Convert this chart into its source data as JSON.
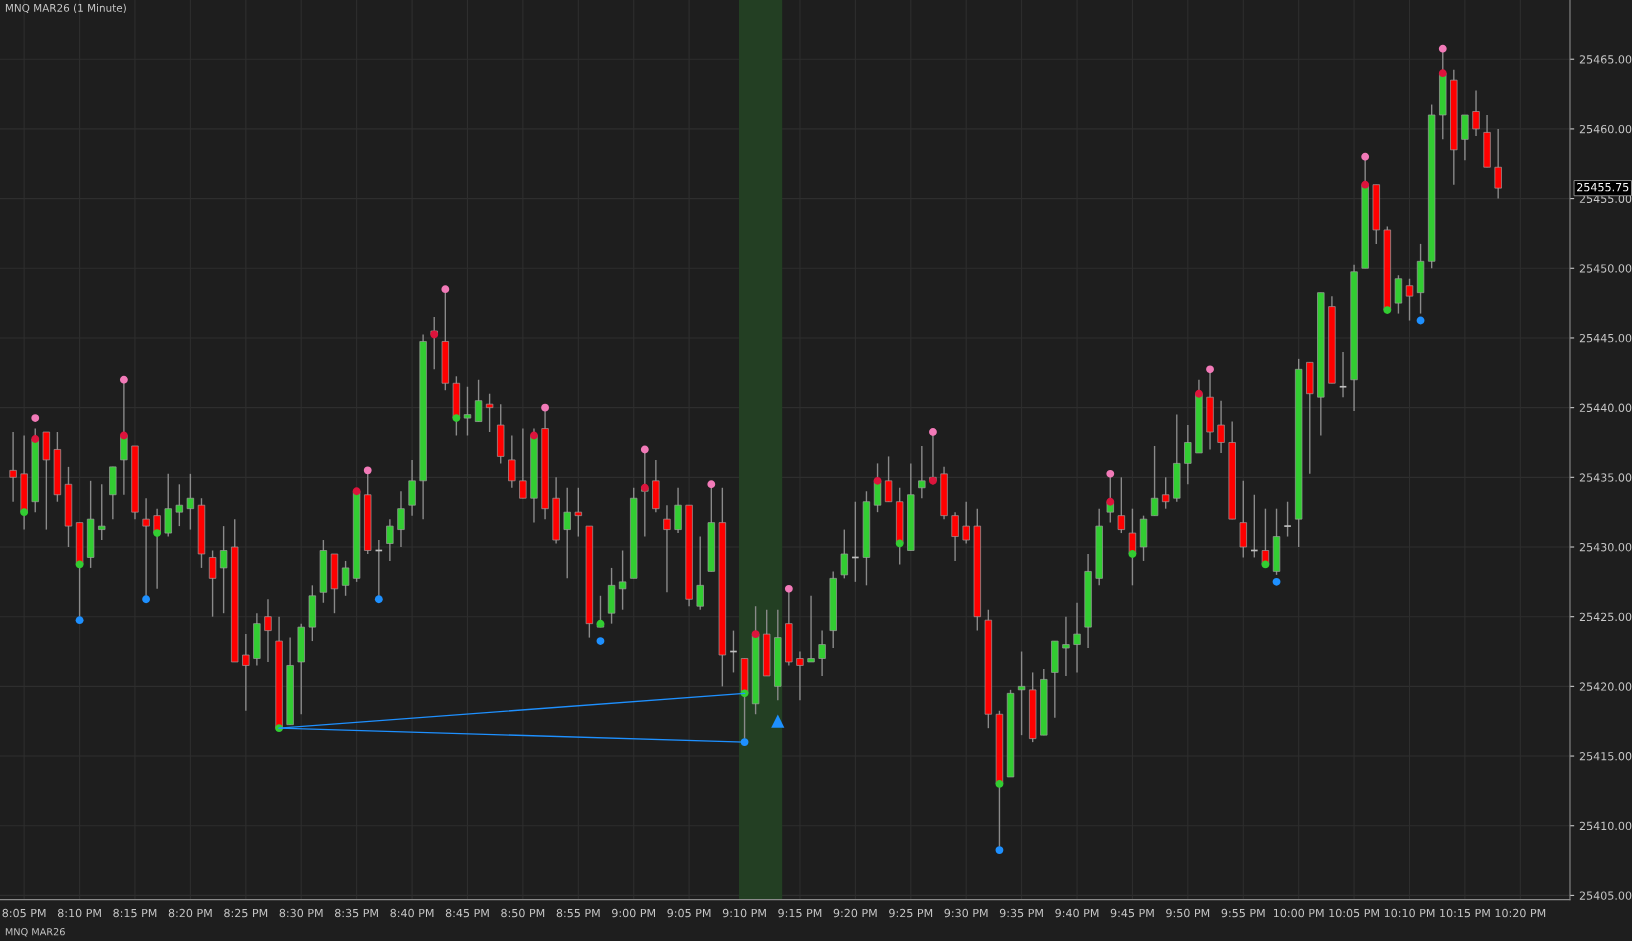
{
  "chart_data": {
    "type": "candlestick",
    "title": "MNQ MAR26 (1 Minute)",
    "annotations": [
      "MNQ MAR26",
      "25455.75"
    ],
    "x": [
      20.0667,
      20.0833,
      20.1,
      20.1167,
      20.1333,
      20.15,
      20.1667,
      20.1833,
      20.2,
      20.2167,
      20.2333,
      20.25,
      20.2667,
      20.2833,
      20.3,
      20.3167,
      20.3333,
      20.35,
      20.3667,
      20.3833,
      20.4,
      20.4167,
      20.4333,
      20.45,
      20.4667,
      20.4833,
      20.5,
      20.5167,
      20.5333,
      20.55,
      20.5667,
      20.5833,
      20.6,
      20.6167,
      20.6333,
      20.65,
      20.6667,
      20.6833,
      20.7,
      20.7167,
      20.7333,
      20.75,
      20.7667,
      20.7833,
      20.8,
      20.8167,
      20.8333,
      20.85,
      20.8667,
      20.8833,
      20.9,
      20.9167,
      20.9333,
      20.95,
      20.9667,
      20.9833,
      21,
      21.0167,
      21.0333,
      21.05,
      21.0667,
      21.0833,
      21.1,
      21.1167,
      21.1333,
      21.15,
      21.1667,
      21.1833,
      21.2,
      21.2167,
      21.2333,
      21.25,
      21.2667,
      21.2833,
      21.3,
      21.3167,
      21.3333,
      21.35,
      21.3667,
      21.3833,
      21.4,
      21.4167,
      21.4333,
      21.45,
      21.4667,
      21.4833,
      21.5,
      21.5167,
      21.5333,
      21.55,
      21.5667,
      21.5833,
      21.6,
      21.6167,
      21.6333,
      21.65,
      21.6667,
      21.6833,
      21.7,
      21.7167,
      21.7333,
      21.75,
      21.7667,
      21.7833,
      21.8,
      21.8167,
      21.8333,
      21.85,
      21.8667,
      21.8833,
      21.9,
      21.9167,
      21.9333,
      21.95,
      21.9667,
      21.9833,
      22,
      22.0167,
      22.0333,
      22.05,
      22.0667,
      22.0833,
      22.1,
      22.1167,
      22.1333,
      22.15,
      22.1667,
      22.1833,
      22.2,
      22.2167,
      22.2333,
      22.25,
      22.2667,
      22.2833,
      22.3
    ],
    "ohlc": [
      [
        25435.5,
        25438.25,
        25433.25,
        25435
      ],
      [
        25435.25,
        25438,
        25431.25,
        25432.5
      ],
      [
        25433.25,
        25438.5,
        25432.5,
        25437.75
      ],
      [
        25438.25,
        25438.25,
        25431.25,
        25436.25
      ],
      [
        25437,
        25438.25,
        25433.25,
        25433.75
      ],
      [
        25434.5,
        25435.75,
        25430,
        25431.5
      ],
      [
        25431.75,
        25431.75,
        25425,
        25428.75
      ],
      [
        25429.25,
        25434.75,
        25428.5,
        25432
      ],
      [
        25431.25,
        25434.5,
        25430.5,
        25431.5
      ],
      [
        25433.75,
        25435.75,
        25432,
        25435.75
      ],
      [
        25436.25,
        25441.75,
        25433.75,
        25438
      ],
      [
        25437.25,
        25437.25,
        25432,
        25432.5
      ],
      [
        25432,
        25433.5,
        25426.5,
        25431.5
      ],
      [
        25432.25,
        25432.75,
        25427,
        25431
      ],
      [
        25431,
        25435.25,
        25430.75,
        25432.75
      ],
      [
        25432.5,
        25434.5,
        25431.5,
        25433
      ],
      [
        25432.75,
        25435.25,
        25431.25,
        25433.5
      ],
      [
        25433,
        25433.5,
        25428.5,
        25429.5
      ],
      [
        25429.25,
        25429.75,
        25425,
        25427.75
      ],
      [
        25428.5,
        25431.5,
        25425.25,
        25429.75
      ],
      [
        25430,
        25432,
        25421.75,
        25421.75
      ],
      [
        25422.25,
        25423.75,
        25418.25,
        25421.5
      ],
      [
        25422,
        25425.25,
        25421.5,
        25424.5
      ],
      [
        25425,
        25426.25,
        25421.75,
        25424
      ],
      [
        25423.25,
        25425,
        25417,
        25417
      ],
      [
        25417.25,
        25423.5,
        25417.25,
        25421.5
      ],
      [
        25421.75,
        25424.5,
        25418,
        25424.25
      ],
      [
        25424.25,
        25427.25,
        25423.25,
        25426.5
      ],
      [
        25426.75,
        25430.5,
        25426,
        25429.75
      ],
      [
        25429.5,
        25429.5,
        25425.25,
        25427
      ],
      [
        25427.25,
        25429,
        25426.5,
        25428.5
      ],
      [
        25427.75,
        25434,
        25427.5,
        25434
      ],
      [
        25433.75,
        25435.25,
        25429.5,
        25429.75
      ],
      [
        25429.75,
        25430.5,
        25426.5,
        25429.75
      ],
      [
        25430.25,
        25432,
        25429,
        25431.5
      ],
      [
        25431.25,
        25434,
        25430,
        25432.75
      ],
      [
        25433,
        25436.25,
        25432.25,
        25434.75
      ],
      [
        25434.75,
        25445.25,
        25432,
        25444.75
      ],
      [
        25445.5,
        25446.5,
        25442.75,
        25445.25
      ],
      [
        25444.75,
        25448.25,
        25441.25,
        25441.75
      ],
      [
        25441.75,
        25442.25,
        25438,
        25439.25
      ],
      [
        25439.25,
        25441.5,
        25438,
        25439.5
      ],
      [
        25439,
        25442,
        25439,
        25440.5
      ],
      [
        25440.25,
        25441,
        25438.25,
        25440
      ],
      [
        25438.75,
        25440.25,
        25436,
        25436.5
      ],
      [
        25436.25,
        25438,
        25434.25,
        25434.75
      ],
      [
        25434.75,
        25438.5,
        25433.5,
        25433.5
      ],
      [
        25433.5,
        25438.5,
        25431.75,
        25438
      ],
      [
        25438.5,
        25439.75,
        25432,
        25432.75
      ],
      [
        25433.5,
        25435,
        25430.25,
        25430.5
      ],
      [
        25431.25,
        25434.25,
        25427.75,
        25432.5
      ],
      [
        25432.5,
        25434.25,
        25430.75,
        25432.25
      ],
      [
        25431.5,
        25431.5,
        25423.5,
        25424.5
      ],
      [
        25424.25,
        25426.5,
        25424.25,
        25424.5
      ],
      [
        25425.25,
        25428.5,
        25424.5,
        25427.25
      ],
      [
        25427,
        25429.75,
        25425.5,
        25427.5
      ],
      [
        25427.75,
        25434.25,
        25427.75,
        25433.5
      ],
      [
        25434,
        25436.75,
        25430.75,
        25434.25
      ],
      [
        25434.75,
        25436.25,
        25432.5,
        25432.75
      ],
      [
        25432,
        25433,
        25426.75,
        25431.25
      ],
      [
        25431.25,
        25434.25,
        25431,
        25433
      ],
      [
        25433,
        25433,
        25425.75,
        25426.25
      ],
      [
        25425.75,
        25430.75,
        25425.5,
        25427.25
      ],
      [
        25428.25,
        25434.25,
        25428.25,
        25431.75
      ],
      [
        25431.75,
        25434.25,
        25420,
        25422.25
      ],
      [
        25422.5,
        25424,
        25421,
        25422.5
      ],
      [
        25422,
        25422,
        25416.25,
        25419.5
      ],
      [
        25418.75,
        25425.75,
        25418,
        25423.75
      ],
      [
        25423.75,
        25425.5,
        25420.75,
        25420.75
      ],
      [
        25420,
        25425.5,
        25419,
        25423.5
      ],
      [
        25424.5,
        25426.75,
        25421.5,
        25421.75
      ],
      [
        25422,
        25422.5,
        25419,
        25421.5
      ],
      [
        25421.75,
        25426.5,
        25421.75,
        25422
      ],
      [
        25422,
        25424,
        25420.75,
        25423
      ],
      [
        25424,
        25428.25,
        25422.75,
        25427.75
      ],
      [
        25428,
        25431.25,
        25427.75,
        25429.5
      ],
      [
        25429.25,
        25433.25,
        25427.5,
        25429.25
      ],
      [
        25429.25,
        25434,
        25427.25,
        25433.25
      ],
      [
        25433,
        25436,
        25432.5,
        25434.75
      ],
      [
        25434.75,
        25436.5,
        25433.25,
        25433.25
      ],
      [
        25433.25,
        25434.25,
        25428.75,
        25430.25
      ],
      [
        25429.75,
        25436,
        25429.75,
        25433.75
      ],
      [
        25434.25,
        25437.25,
        25433.5,
        25434.75
      ],
      [
        25435,
        25438,
        25434.5,
        25434.75
      ],
      [
        25435.25,
        25435.75,
        25432,
        25432.25
      ],
      [
        25432.25,
        25432.5,
        25429,
        25430.75
      ],
      [
        25431.5,
        25433.25,
        25430.25,
        25430.5
      ],
      [
        25431.5,
        25432.75,
        25424,
        25425
      ],
      [
        25424.75,
        25425.5,
        25417,
        25418
      ],
      [
        25418,
        25418.25,
        25408.5,
        25413
      ],
      [
        25413.5,
        25419.75,
        25413.5,
        25419.5
      ],
      [
        25419.75,
        25422.5,
        25416.5,
        25420
      ],
      [
        25419.75,
        25421,
        25416,
        25416.25
      ],
      [
        25416.5,
        25421.25,
        25416.5,
        25420.5
      ],
      [
        25421,
        25423.25,
        25417.75,
        25423.25
      ],
      [
        25422.75,
        25425,
        25420.75,
        25423
      ],
      [
        25423,
        25426,
        25421,
        25423.75
      ],
      [
        25424.25,
        25429.5,
        25422.75,
        25428.25
      ],
      [
        25427.75,
        25432.75,
        25427.25,
        25431.5
      ],
      [
        25432.5,
        25435,
        25431.75,
        25433.25
      ],
      [
        25432.25,
        25435,
        25431,
        25431.25
      ],
      [
        25431,
        25432.75,
        25427.25,
        25429.5
      ],
      [
        25430,
        25432.25,
        25429,
        25432
      ],
      [
        25432.25,
        25437.25,
        25432.25,
        25433.5
      ],
      [
        25433.75,
        25435,
        25432.75,
        25433.25
      ],
      [
        25433.5,
        25439.5,
        25433.25,
        25436
      ],
      [
        25436,
        25438.75,
        25434.5,
        25437.5
      ],
      [
        25436.75,
        25442,
        25436.75,
        25441
      ],
      [
        25440.75,
        25442.5,
        25437,
        25438.25
      ],
      [
        25438.75,
        25440.5,
        25436.75,
        25437.5
      ],
      [
        25437.5,
        25439,
        25432,
        25432
      ],
      [
        25431.75,
        25434.75,
        25429.25,
        25430
      ],
      [
        25429.75,
        25433.75,
        25429.25,
        25429.75
      ],
      [
        25429.75,
        25432.75,
        25428.75,
        25428.75
      ],
      [
        25428.25,
        25432.75,
        25428,
        25430.75
      ],
      [
        25431.5,
        25433.25,
        25430.75,
        25431.5
      ],
      [
        25432,
        25443.5,
        25430,
        25442.75
      ],
      [
        25443.25,
        25443.25,
        25435.25,
        25441
      ],
      [
        25440.75,
        25448.25,
        25438,
        25448.25
      ],
      [
        25447.25,
        25448,
        25441.75,
        25441.75
      ],
      [
        25441.5,
        25444,
        25440.75,
        25441.5
      ],
      [
        25442,
        25450.25,
        25439.75,
        25449.75
      ],
      [
        25450,
        25457.75,
        25450,
        25456
      ],
      [
        25456,
        25456,
        25451.75,
        25452.75
      ],
      [
        25452.75,
        25453,
        25447,
        25447
      ],
      [
        25447.5,
        25449.5,
        25446.75,
        25449.25
      ],
      [
        25448.75,
        25449.25,
        25446.25,
        25448
      ],
      [
        25448.25,
        25451.75,
        25446.75,
        25450.5
      ],
      [
        25450.5,
        25461.75,
        25450,
        25461
      ],
      [
        25461,
        25465.5,
        25459.25,
        25464
      ],
      [
        25463.5,
        25464.25,
        25456,
        25458.5
      ],
      [
        25459.25,
        25461,
        25457.75,
        25461
      ],
      [
        25461.25,
        25462.75,
        25459.5,
        25460
      ],
      [
        25459.75,
        25461,
        25457.25,
        25457.25
      ],
      [
        25457.25,
        25460,
        25455,
        25455.75
      ]
    ],
    "colors": [
      "#ff0000",
      "#ff0000",
      "#32cd32",
      "#ff0000",
      "#ff0000",
      "#ff0000",
      "#ff0000",
      "#32cd32",
      "#32cd32",
      "#32cd32",
      "#32cd32",
      "#ff0000",
      "#ff0000",
      "#ff0000",
      "#32cd32",
      "#32cd32",
      "#32cd32",
      "#ff0000",
      "#ff0000",
      "#32cd32",
      "#ff0000",
      "#ff0000",
      "#32cd32",
      "#ff0000",
      "#ff0000",
      "#32cd32",
      "#32cd32",
      "#32cd32",
      "#32cd32",
      "#ff0000",
      "#32cd32",
      "#32cd32",
      "#ff0000",
      "#c0c0c0",
      "#32cd32",
      "#32cd32",
      "#32cd32",
      "#32cd32",
      "#ff0000",
      "#ff0000",
      "#ff0000",
      "#32cd32",
      "#32cd32",
      "#ff0000",
      "#ff0000",
      "#ff0000",
      "#ff0000",
      "#32cd32",
      "#ff0000",
      "#ff0000",
      "#32cd32",
      "#ff0000",
      "#ff0000",
      "#32cd32",
      "#32cd32",
      "#32cd32",
      "#32cd32",
      "#32cd32",
      "#ff0000",
      "#ff0000",
      "#32cd32",
      "#ff0000",
      "#32cd32",
      "#32cd32",
      "#ff0000",
      "#c0c0c0",
      "#ff0000",
      "#32cd32",
      "#ff0000",
      "#32cd32",
      "#ff0000",
      "#ff0000",
      "#32cd32",
      "#32cd32",
      "#32cd32",
      "#32cd32",
      "#c0c0c0",
      "#32cd32",
      "#32cd32",
      "#ff0000",
      "#ff0000",
      "#32cd32",
      "#32cd32",
      "#ff0000",
      "#ff0000",
      "#ff0000",
      "#ff0000",
      "#ff0000",
      "#ff0000",
      "#ff0000",
      "#32cd32",
      "#32cd32",
      "#ff0000",
      "#32cd32",
      "#32cd32",
      "#32cd32",
      "#32cd32",
      "#32cd32",
      "#32cd32",
      "#32cd32",
      "#ff0000",
      "#ff0000",
      "#32cd32",
      "#32cd32",
      "#ff0000",
      "#32cd32",
      "#32cd32",
      "#32cd32",
      "#ff0000",
      "#ff0000",
      "#ff0000",
      "#ff0000",
      "#c0c0c0",
      "#ff0000",
      "#32cd32",
      "#c0c0c0",
      "#32cd32",
      "#ff0000",
      "#32cd32",
      "#ff0000",
      "#c0c0c0",
      "#32cd32",
      "#32cd32",
      "#ff0000",
      "#ff0000",
      "#32cd32",
      "#ff0000",
      "#32cd32",
      "#32cd32",
      "#32cd32",
      "#ff0000",
      "#32cd32",
      "#ff0000",
      "#ff0000",
      "#ff0000"
    ],
    "series": [
      {
        "type": "scatter",
        "marker": "circle",
        "color": "#f27ab8",
        "x": [
          20.1,
          20.2333,
          20.6,
          20.7167,
          20.8667,
          21.0167,
          21.1167,
          21.2333,
          21.45,
          21.7167,
          21.8667,
          22.1,
          22.2167
        ],
        "values": [
          25439.25,
          25442,
          25435.5,
          25448.5,
          25440,
          25437,
          25434.5,
          25427,
          25438.25,
          25435.25,
          25442.75,
          25458,
          25465.75
        ]
      },
      {
        "type": "scatter",
        "marker": "circle",
        "color": "#dc143c",
        "x": [
          20.1,
          20.2333,
          20.5833,
          20.7,
          20.85,
          21.0167,
          21.1833,
          21.3667,
          21.45,
          21.7167,
          21.85,
          22.1,
          22.2167
        ],
        "values": [
          25437.75,
          25438,
          25434,
          25445.25,
          25438,
          25434.25,
          25423.75,
          25434.75,
          25434.75,
          25433.25,
          25441,
          25456,
          25464
        ]
      },
      {
        "type": "scatter",
        "marker": "circle",
        "color": "#32cd32",
        "x": [
          20.0833,
          20.1667,
          20.2833,
          20.4667,
          20.7333,
          20.95,
          21.1667,
          21.4,
          21.55,
          21.75,
          21.95,
          22.1333
        ],
        "values": [
          25432.5,
          25428.75,
          25431,
          25417,
          25439.25,
          25424.5,
          25419.5,
          25430.25,
          25413,
          25429.5,
          25428.75,
          25447
        ]
      },
      {
        "type": "scatter",
        "marker": "circle",
        "color": "#1e90ff",
        "x": [
          20.1667,
          20.2667,
          20.6167,
          20.95,
          21.1667,
          21.55,
          21.9667,
          22.1833
        ],
        "values": [
          25424.75,
          25426.25,
          25426.25,
          25423.25,
          25416,
          25408.25,
          25427.5,
          25446.25
        ]
      },
      {
        "type": "line",
        "color": "#1e90ff",
        "x": [
          20.4667,
          21.1667
        ],
        "values": [
          25417,
          25419.5
        ]
      },
      {
        "type": "line",
        "color": "#1e90ff",
        "x": [
          20.4667,
          21.1667
        ],
        "values": [
          25417,
          25416
        ]
      },
      {
        "type": "scatter",
        "marker": "triangle",
        "color": "#1e90ff",
        "x": [
          21.2167
        ],
        "values": [
          25417.5
        ]
      }
    ],
    "bands": [
      {
        "axis": "x",
        "from": 21.1583,
        "to": 21.2233,
        "color": "#233f23"
      }
    ],
    "xlim": [
      20.047,
      22.408
    ],
    "ylim": [
      25404.7,
      25469.25
    ],
    "xticks": [
      {
        "value": 20.0833,
        "label": "8:05 PM"
      },
      {
        "value": 20.1667,
        "label": "8:10 PM"
      },
      {
        "value": 20.25,
        "label": "8:15 PM"
      },
      {
        "value": 20.3333,
        "label": "8:20 PM"
      },
      {
        "value": 20.4167,
        "label": "8:25 PM"
      },
      {
        "value": 20.5,
        "label": "8:30 PM"
      },
      {
        "value": 20.5833,
        "label": "8:35 PM"
      },
      {
        "value": 20.6667,
        "label": "8:40 PM"
      },
      {
        "value": 20.75,
        "label": "8:45 PM"
      },
      {
        "value": 20.8333,
        "label": "8:50 PM"
      },
      {
        "value": 20.9167,
        "label": "8:55 PM"
      },
      {
        "value": 21,
        "label": "9:00 PM"
      },
      {
        "value": 21.0833,
        "label": "9:05 PM"
      },
      {
        "value": 21.1667,
        "label": "9:10 PM"
      },
      {
        "value": 21.25,
        "label": "9:15 PM"
      },
      {
        "value": 21.3333,
        "label": "9:20 PM"
      },
      {
        "value": 21.4167,
        "label": "9:25 PM"
      },
      {
        "value": 21.5,
        "label": "9:30 PM"
      },
      {
        "value": 21.5833,
        "label": "9:35 PM"
      },
      {
        "value": 21.6667,
        "label": "9:40 PM"
      },
      {
        "value": 21.75,
        "label": "9:45 PM"
      },
      {
        "value": 21.8333,
        "label": "9:50 PM"
      },
      {
        "value": 21.9167,
        "label": "9:55 PM"
      },
      {
        "value": 22,
        "label": "10:00 PM"
      },
      {
        "value": 22.0833,
        "label": "10:05 PM"
      },
      {
        "value": 22.1667,
        "label": "10:10 PM"
      },
      {
        "value": 22.25,
        "label": "10:15 PM"
      },
      {
        "value": 22.3333,
        "label": "10:20 PM"
      }
    ],
    "yticks": [
      {
        "value": 25405,
        "label": "25405.00"
      },
      {
        "value": 25410,
        "label": "25410.00"
      },
      {
        "value": 25415,
        "label": "25415.00"
      },
      {
        "value": 25420,
        "label": "25420.00"
      },
      {
        "value": 25425,
        "label": "25425.00"
      },
      {
        "value": 25430,
        "label": "25430.00"
      },
      {
        "value": 25435,
        "label": "25435.00"
      },
      {
        "value": 25440,
        "label": "25440.00"
      },
      {
        "value": 25445,
        "label": "25445.00"
      },
      {
        "value": 25450,
        "label": "25450.00"
      },
      {
        "value": 25455,
        "label": "25455.00"
      },
      {
        "value": 25460,
        "label": "25460.00"
      },
      {
        "value": 25465,
        "label": "25465.00"
      }
    ],
    "grid": true
  }
}
